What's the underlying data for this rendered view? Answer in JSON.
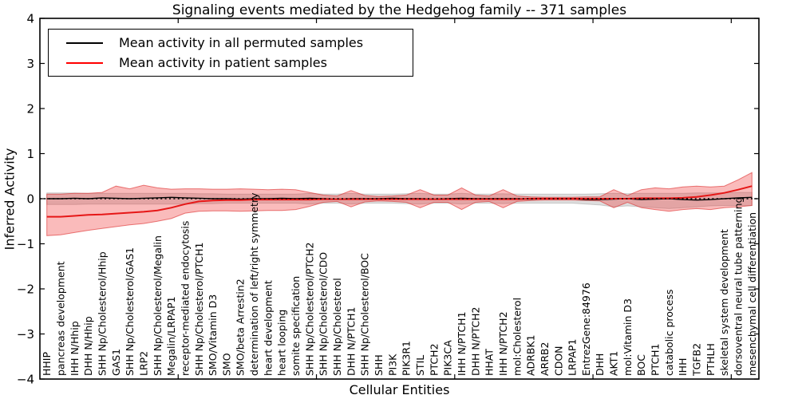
{
  "title": "Signaling events mediated by the Hedgehog family -- 371 samples",
  "legend": {
    "items": [
      {
        "label": "Mean activity in all permuted samples",
        "color": "#000000"
      },
      {
        "label": "Mean activity in patient samples",
        "color": "#ff0000"
      }
    ]
  },
  "y_axis": {
    "label": "Inferred Activity",
    "tick_labels": [
      "4",
      "3",
      "2",
      "1",
      "0",
      "−1",
      "−2",
      "−3",
      "−4"
    ],
    "tick_values": [
      4,
      3,
      2,
      1,
      0,
      -1,
      -2,
      -3,
      -4
    ]
  },
  "x_axis": {
    "label": "Cellular Entities",
    "major_tick_values": [
      10,
      20,
      30,
      40,
      50
    ]
  },
  "chart_data": {
    "type": "line",
    "title": "Signaling events mediated by the Hedgehog family -- 371 samples",
    "xlabel": "Cellular Entities",
    "ylabel": "Inferred Activity",
    "ylim": [
      -4,
      4
    ],
    "grid": false,
    "legend_position": "upper left",
    "colors": {
      "permuted_line": "#000000",
      "patient_line": "#e61717",
      "patient_band_fill": "rgba(240,45,45,0.32)",
      "patient_band_edge": "rgba(220,40,40,0.6)",
      "permuted_band_fill": "rgba(150,150,150,0.32)",
      "permuted_band_edge": "rgba(130,130,130,0.35)",
      "zero_line": "#000000"
    },
    "categories": [
      "HHIP",
      "pancreas development",
      "IHH N/Hhip",
      "DHH N/Hhip",
      "SHH Np/Cholesterol/Hhip",
      "GAS1",
      "SHH Np/Cholesterol/GAS1",
      "LRP2",
      "SHH Np/Cholesterol/Megalin",
      "Megalin/LRPAP1",
      "receptor-mediated endocytosis",
      "SHH Np/Cholesterol/PTCH1",
      "SMO/Vitamin D3",
      "SMO",
      "SMO/beta Arrestin2",
      "determination of left/right symmetry",
      "heart development",
      "heart looping",
      "somite specification",
      "SHH Np/Cholesterol/PTCH2",
      "SHH Np/Cholesterol/CDO",
      "SHH Np/Cholesterol",
      "DHH N/PTCH1",
      "SHH Np/Cholesterol/BOC",
      "SHH",
      "PI3K",
      "PIK3R1",
      "STIL",
      "PTCH2",
      "PIK3CA",
      "IHH N/PTCH1",
      "DHH N/PTCH2",
      "HHAT",
      "IHH N/PTCH2",
      "mol:Cholesterol",
      "ADRBK1",
      "ARRB2",
      "CDON",
      "LRPAP1",
      "EntrezGene:84976",
      "DHH",
      "AKT1",
      "mol:Vitamin D3",
      "BOC",
      "PTCH1",
      "catabolic process",
      "IHH",
      "TGFB2",
      "PTHLH",
      "skeletal system development",
      "dorsoventral neural tube patterning",
      "mesenchymal cell differentiation"
    ],
    "series": [
      {
        "name": "Mean activity in all permuted samples",
        "values": [
          0.0,
          0.0,
          0.01,
          0.0,
          0.02,
          0.01,
          0.0,
          0.01,
          0.02,
          0.03,
          0.02,
          0.01,
          0.0,
          0.0,
          -0.01,
          0.0,
          0.0,
          0.01,
          0.0,
          0.01,
          0.0,
          -0.01,
          0.0,
          0.0,
          0.0,
          0.01,
          0.0,
          0.0,
          -0.01,
          0.0,
          0.01,
          0.0,
          0.0,
          0.0,
          0.0,
          -0.01,
          0.0,
          0.0,
          0.0,
          -0.02,
          -0.02,
          -0.01,
          0.0,
          -0.02,
          -0.01,
          0.0,
          -0.02,
          -0.03,
          -0.02,
          0.0,
          0.02,
          0.03
        ],
        "band_upper": [
          0.13,
          0.13,
          0.13,
          0.12,
          0.12,
          0.12,
          0.12,
          0.12,
          0.12,
          0.12,
          0.12,
          0.11,
          0.11,
          0.1,
          0.1,
          0.1,
          0.1,
          0.1,
          0.1,
          0.12,
          0.1,
          0.1,
          0.12,
          0.1,
          0.1,
          0.1,
          0.11,
          0.12,
          0.1,
          0.1,
          0.12,
          0.1,
          0.1,
          0.11,
          0.1,
          0.1,
          0.1,
          0.1,
          0.1,
          0.1,
          0.11,
          0.12,
          0.11,
          0.12,
          0.12,
          0.12,
          0.12,
          0.13,
          0.13,
          0.13,
          0.14,
          0.14
        ],
        "band_lower": [
          -0.13,
          -0.13,
          -0.13,
          -0.12,
          -0.12,
          -0.12,
          -0.12,
          -0.12,
          -0.12,
          -0.12,
          -0.12,
          -0.11,
          -0.11,
          -0.1,
          -0.1,
          -0.1,
          -0.1,
          -0.1,
          -0.1,
          -0.12,
          -0.1,
          -0.1,
          -0.12,
          -0.1,
          -0.1,
          -0.1,
          -0.11,
          -0.12,
          -0.1,
          -0.1,
          -0.12,
          -0.1,
          -0.1,
          -0.11,
          -0.1,
          -0.1,
          -0.1,
          -0.1,
          -0.1,
          -0.12,
          -0.14,
          -0.18,
          -0.16,
          -0.18,
          -0.2,
          -0.22,
          -0.2,
          -0.18,
          -0.16,
          -0.15,
          -0.15,
          -0.15
        ]
      },
      {
        "name": "Mean activity in patient samples",
        "values": [
          -0.4,
          -0.4,
          -0.38,
          -0.36,
          -0.35,
          -0.33,
          -0.31,
          -0.29,
          -0.26,
          -0.2,
          -0.12,
          -0.06,
          -0.04,
          -0.03,
          -0.03,
          -0.02,
          -0.02,
          -0.02,
          -0.02,
          -0.02,
          -0.01,
          -0.01,
          -0.01,
          -0.01,
          -0.01,
          -0.01,
          -0.01,
          -0.01,
          -0.01,
          -0.01,
          -0.01,
          -0.01,
          -0.01,
          -0.01,
          -0.01,
          0.0,
          0.0,
          0.0,
          0.0,
          0.0,
          0.0,
          0.0,
          0.0,
          0.01,
          0.01,
          0.01,
          0.02,
          0.04,
          0.08,
          0.13,
          0.2,
          0.28
        ],
        "band_upper": [
          0.1,
          0.1,
          0.12,
          0.12,
          0.14,
          0.28,
          0.22,
          0.3,
          0.24,
          0.21,
          0.22,
          0.22,
          0.21,
          0.21,
          0.22,
          0.21,
          0.2,
          0.21,
          0.2,
          0.14,
          0.08,
          0.06,
          0.18,
          0.07,
          0.05,
          0.06,
          0.08,
          0.2,
          0.08,
          0.08,
          0.24,
          0.08,
          0.06,
          0.2,
          0.06,
          0.04,
          0.03,
          0.03,
          0.03,
          0.04,
          0.04,
          0.2,
          0.07,
          0.2,
          0.24,
          0.22,
          0.26,
          0.28,
          0.26,
          0.28,
          0.42,
          0.58
        ],
        "band_lower": [
          -0.82,
          -0.8,
          -0.75,
          -0.7,
          -0.66,
          -0.62,
          -0.58,
          -0.55,
          -0.5,
          -0.44,
          -0.32,
          -0.28,
          -0.27,
          -0.27,
          -0.28,
          -0.27,
          -0.26,
          -0.26,
          -0.24,
          -0.17,
          -0.08,
          -0.06,
          -0.18,
          -0.07,
          -0.05,
          -0.06,
          -0.08,
          -0.2,
          -0.08,
          -0.08,
          -0.24,
          -0.08,
          -0.06,
          -0.2,
          -0.06,
          -0.04,
          -0.03,
          -0.03,
          -0.03,
          -0.04,
          -0.05,
          -0.2,
          -0.08,
          -0.2,
          -0.24,
          -0.28,
          -0.24,
          -0.22,
          -0.24,
          -0.2,
          -0.18,
          -0.15
        ]
      }
    ],
    "zero_reference_line": 0
  }
}
